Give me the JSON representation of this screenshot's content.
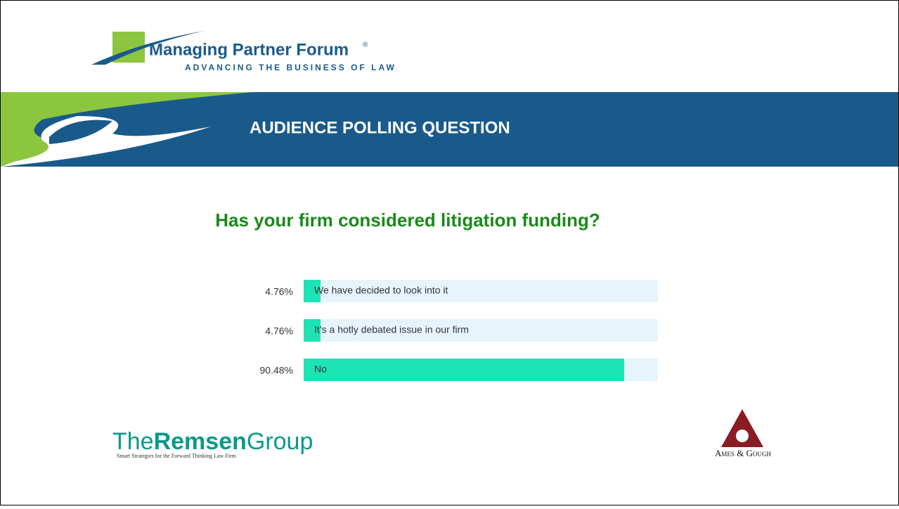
{
  "logos": {
    "forum_name": "Managing Partner Forum",
    "forum_mark": "®",
    "forum_tagline": "ADVANCING THE BUSINESS OF LAW",
    "remsen_the": "The",
    "remsen_name": "Remsen",
    "remsen_group": "Group",
    "remsen_tagline": "Smart Strategies for the Forward Thinking Law Firm",
    "ames": "Ames & Gough"
  },
  "banner": "AUDIENCE POLLING QUESTION",
  "chart_data": {
    "type": "bar",
    "orientation": "horizontal",
    "title": "Has your firm considered litigation funding?",
    "categories": [
      "We have decided to look into it",
      "It’s a hotly debated issue in our firm",
      "No"
    ],
    "values": [
      4.76,
      4.76,
      90.48
    ],
    "value_labels": [
      "4.76%",
      "4.76%",
      "90.48%"
    ],
    "color": "#1de3b6",
    "track_color": "#e6f4fc",
    "xlim": [
      0,
      100
    ]
  }
}
